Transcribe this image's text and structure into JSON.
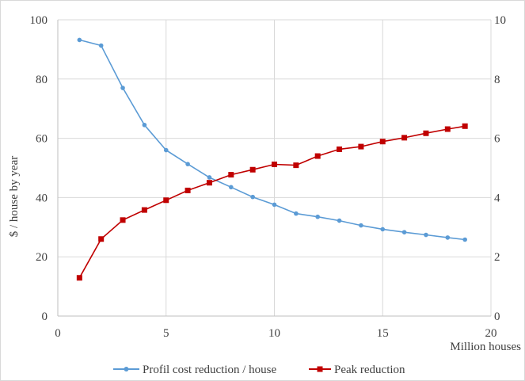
{
  "chart_data": {
    "type": "line",
    "xlabel": "Million houses",
    "ylabel": "$ / house by year",
    "y2label": "",
    "xlim": [
      0,
      20
    ],
    "ylim": [
      0,
      100
    ],
    "y2lim": [
      0,
      10
    ],
    "x_ticks": [
      "0",
      "5",
      "10",
      "15",
      "20"
    ],
    "y_ticks": [
      "0",
      "20",
      "40",
      "60",
      "80",
      "100"
    ],
    "y2_ticks": [
      "0",
      "2",
      "4",
      "6",
      "8",
      "10"
    ],
    "grid": true,
    "legend_position": "bottom",
    "series": [
      {
        "name": "Profil cost reduction / house",
        "axis": "left",
        "color": "#5b9bd5",
        "marker": "circle",
        "x": [
          1,
          2,
          3,
          4,
          5,
          6,
          7,
          8,
          9,
          10,
          11,
          12,
          13,
          14,
          15,
          16,
          17,
          18,
          18.8
        ],
        "y": [
          93.2,
          91.3,
          77.0,
          64.5,
          56.0,
          51.3,
          46.8,
          43.5,
          40.2,
          37.6,
          34.6,
          33.5,
          32.2,
          30.6,
          29.3,
          28.3,
          27.4,
          26.5,
          25.8
        ]
      },
      {
        "name": "Peak reduction",
        "axis": "right",
        "color": "#c00000",
        "marker": "square",
        "x": [
          1,
          2,
          3,
          4,
          5,
          6,
          7,
          8,
          9,
          10,
          11,
          12,
          13,
          14,
          15,
          16,
          17,
          18,
          18.8
        ],
        "y": [
          1.29,
          2.6,
          3.24,
          3.58,
          3.91,
          4.24,
          4.5,
          4.77,
          4.94,
          5.12,
          5.09,
          5.4,
          5.63,
          5.72,
          5.89,
          6.02,
          6.17,
          6.31,
          6.41
        ]
      }
    ]
  }
}
